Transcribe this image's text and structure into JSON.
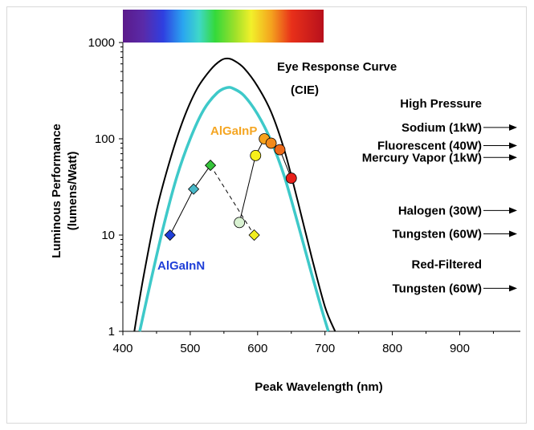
{
  "chart_data": {
    "type": "scatter",
    "xlabel": "Peak Wavelength (nm)",
    "ylabel_line1": "Luminous Performance",
    "ylabel_line2": "(lumens/Watt)",
    "xlim": [
      400,
      990
    ],
    "ylim": [
      1,
      1000
    ],
    "y_scale": "log",
    "x_ticks": [
      "400",
      "500",
      "600",
      "700",
      "800",
      "900"
    ],
    "y_ticks": [
      "1",
      "10",
      "100",
      "1000"
    ],
    "annotations": {
      "eye_line1": "Eye Response Curve",
      "eye_line2": "(CIE)",
      "algainp": "AlGaInP",
      "algainn": "AlGaInN"
    },
    "colors": {
      "eye_curve": "#000000",
      "second_curve": "#3ec9c9",
      "algainp_label": "#f5a623",
      "algainn_label": "#1f3fd8"
    },
    "series": [
      {
        "name": "Eye Response Curve (CIE)",
        "type": "line",
        "color": "#000000",
        "x": [
          417,
          430,
          450,
          470,
          490,
          510,
          530,
          545,
          555,
          565,
          580,
          600,
          620,
          640,
          660,
          680,
          700,
          715
        ],
        "y": [
          1,
          3.5,
          18,
          60,
          160,
          330,
          520,
          650,
          683,
          650,
          540,
          350,
          190,
          75,
          22,
          6,
          1.8,
          1
        ]
      },
      {
        "name": "",
        "type": "line",
        "color": "#3ec9c9",
        "x": [
          425,
          440,
          460,
          480,
          500,
          520,
          540,
          555,
          565,
          580,
          600,
          620,
          640,
          660,
          680,
          695,
          705
        ],
        "y": [
          1,
          3,
          12,
          40,
          100,
          200,
          300,
          340,
          330,
          280,
          180,
          95,
          40,
          13,
          4,
          1.7,
          1
        ]
      },
      {
        "name": "AlGaInN",
        "type": "points",
        "connected": "solid",
        "points": [
          {
            "x": 470,
            "y": 10,
            "color": "#1f3fd8",
            "marker": "diamond"
          },
          {
            "x": 505,
            "y": 30,
            "color": "#47b8c8",
            "marker": "diamond"
          },
          {
            "x": 530,
            "y": 53,
            "color": "#35c43a",
            "marker": "diamond"
          }
        ]
      },
      {
        "name": "",
        "type": "points",
        "connected": "dashed",
        "points": [
          {
            "x": 530,
            "y": 53,
            "color": "#35c43a",
            "marker": "none"
          },
          {
            "x": 595,
            "y": 10,
            "color": "#f2ee1e",
            "marker": "diamond"
          }
        ]
      },
      {
        "name": "AlGaInP",
        "type": "points",
        "connected": "solid",
        "points": [
          {
            "x": 573,
            "y": 13.5,
            "color": "#d9f2d2",
            "marker": "circle"
          },
          {
            "x": 597,
            "y": 67,
            "color": "#f7ef1a",
            "marker": "circle"
          },
          {
            "x": 610,
            "y": 100,
            "color": "#f7a21c",
            "marker": "circle"
          },
          {
            "x": 620,
            "y": 90,
            "color": "#f28a1c",
            "marker": "circle"
          },
          {
            "x": 633,
            "y": 77,
            "color": "#ee6a1a",
            "marker": "circle"
          },
          {
            "x": 650,
            "y": 39,
            "color": "#e8201a",
            "marker": "circle"
          }
        ]
      }
    ],
    "lamps": [
      {
        "lines": [
          "High Pressure",
          "Sodium (1kW)"
        ],
        "y": 131
      },
      {
        "lines": [
          "Fluorescent (40W)"
        ],
        "y": 85
      },
      {
        "lines": [
          "Mercury Vapor (1kW)"
        ],
        "y": 64
      },
      {
        "lines": [
          "Halogen (30W)"
        ],
        "y": 18
      },
      {
        "lines": [
          "Tungsten (60W)"
        ],
        "y": 10.3
      },
      {
        "lines": [
          "Red-Filtered",
          "Tungsten (60W)"
        ],
        "y": 2.8
      }
    ]
  }
}
